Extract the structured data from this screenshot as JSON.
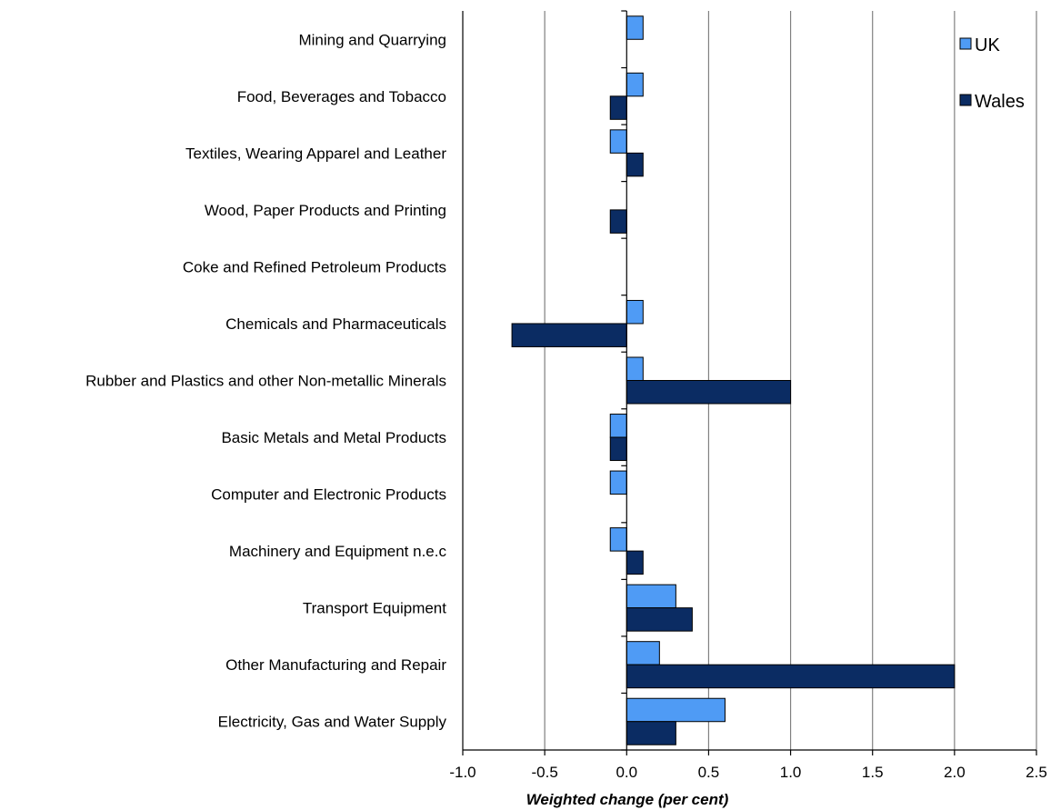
{
  "chart_data": {
    "type": "bar",
    "orientation": "horizontal",
    "categories": [
      "Mining and Quarrying",
      "Food, Beverages and Tobacco",
      "Textiles, Wearing Apparel and Leather",
      "Wood, Paper Products and Printing",
      "Coke and Refined Petroleum Products",
      "Chemicals and Pharmaceuticals",
      "Rubber and Plastics and other Non-metallic Minerals",
      "Basic Metals and Metal Products",
      "Computer and Electronic Products",
      "Machinery and Equipment n.e.c",
      "Transport Equipment",
      "Other Manufacturing and Repair",
      "Electricity, Gas and Water Supply"
    ],
    "series": [
      {
        "name": "UK",
        "color": "#4f9bf5",
        "values": [
          0.1,
          0.1,
          -0.1,
          0.0,
          0.0,
          0.1,
          0.1,
          -0.1,
          -0.1,
          -0.1,
          0.3,
          0.2,
          0.6
        ]
      },
      {
        "name": "Wales",
        "color": "#0b2c63",
        "values": [
          0.0,
          -0.1,
          0.1,
          -0.1,
          0.0,
          -0.7,
          1.0,
          -0.1,
          0.0,
          0.1,
          0.4,
          2.0,
          0.3
        ]
      }
    ],
    "xlabel": "Weighted change (per cent)",
    "ylabel": "",
    "xlim": [
      -1.0,
      2.5
    ],
    "xticks": [
      "-1.0",
      "-0.5",
      "0.0",
      "0.5",
      "1.0",
      "1.5",
      "2.0",
      "2.5"
    ],
    "grid": "vertical",
    "legend_position": "top-right"
  }
}
